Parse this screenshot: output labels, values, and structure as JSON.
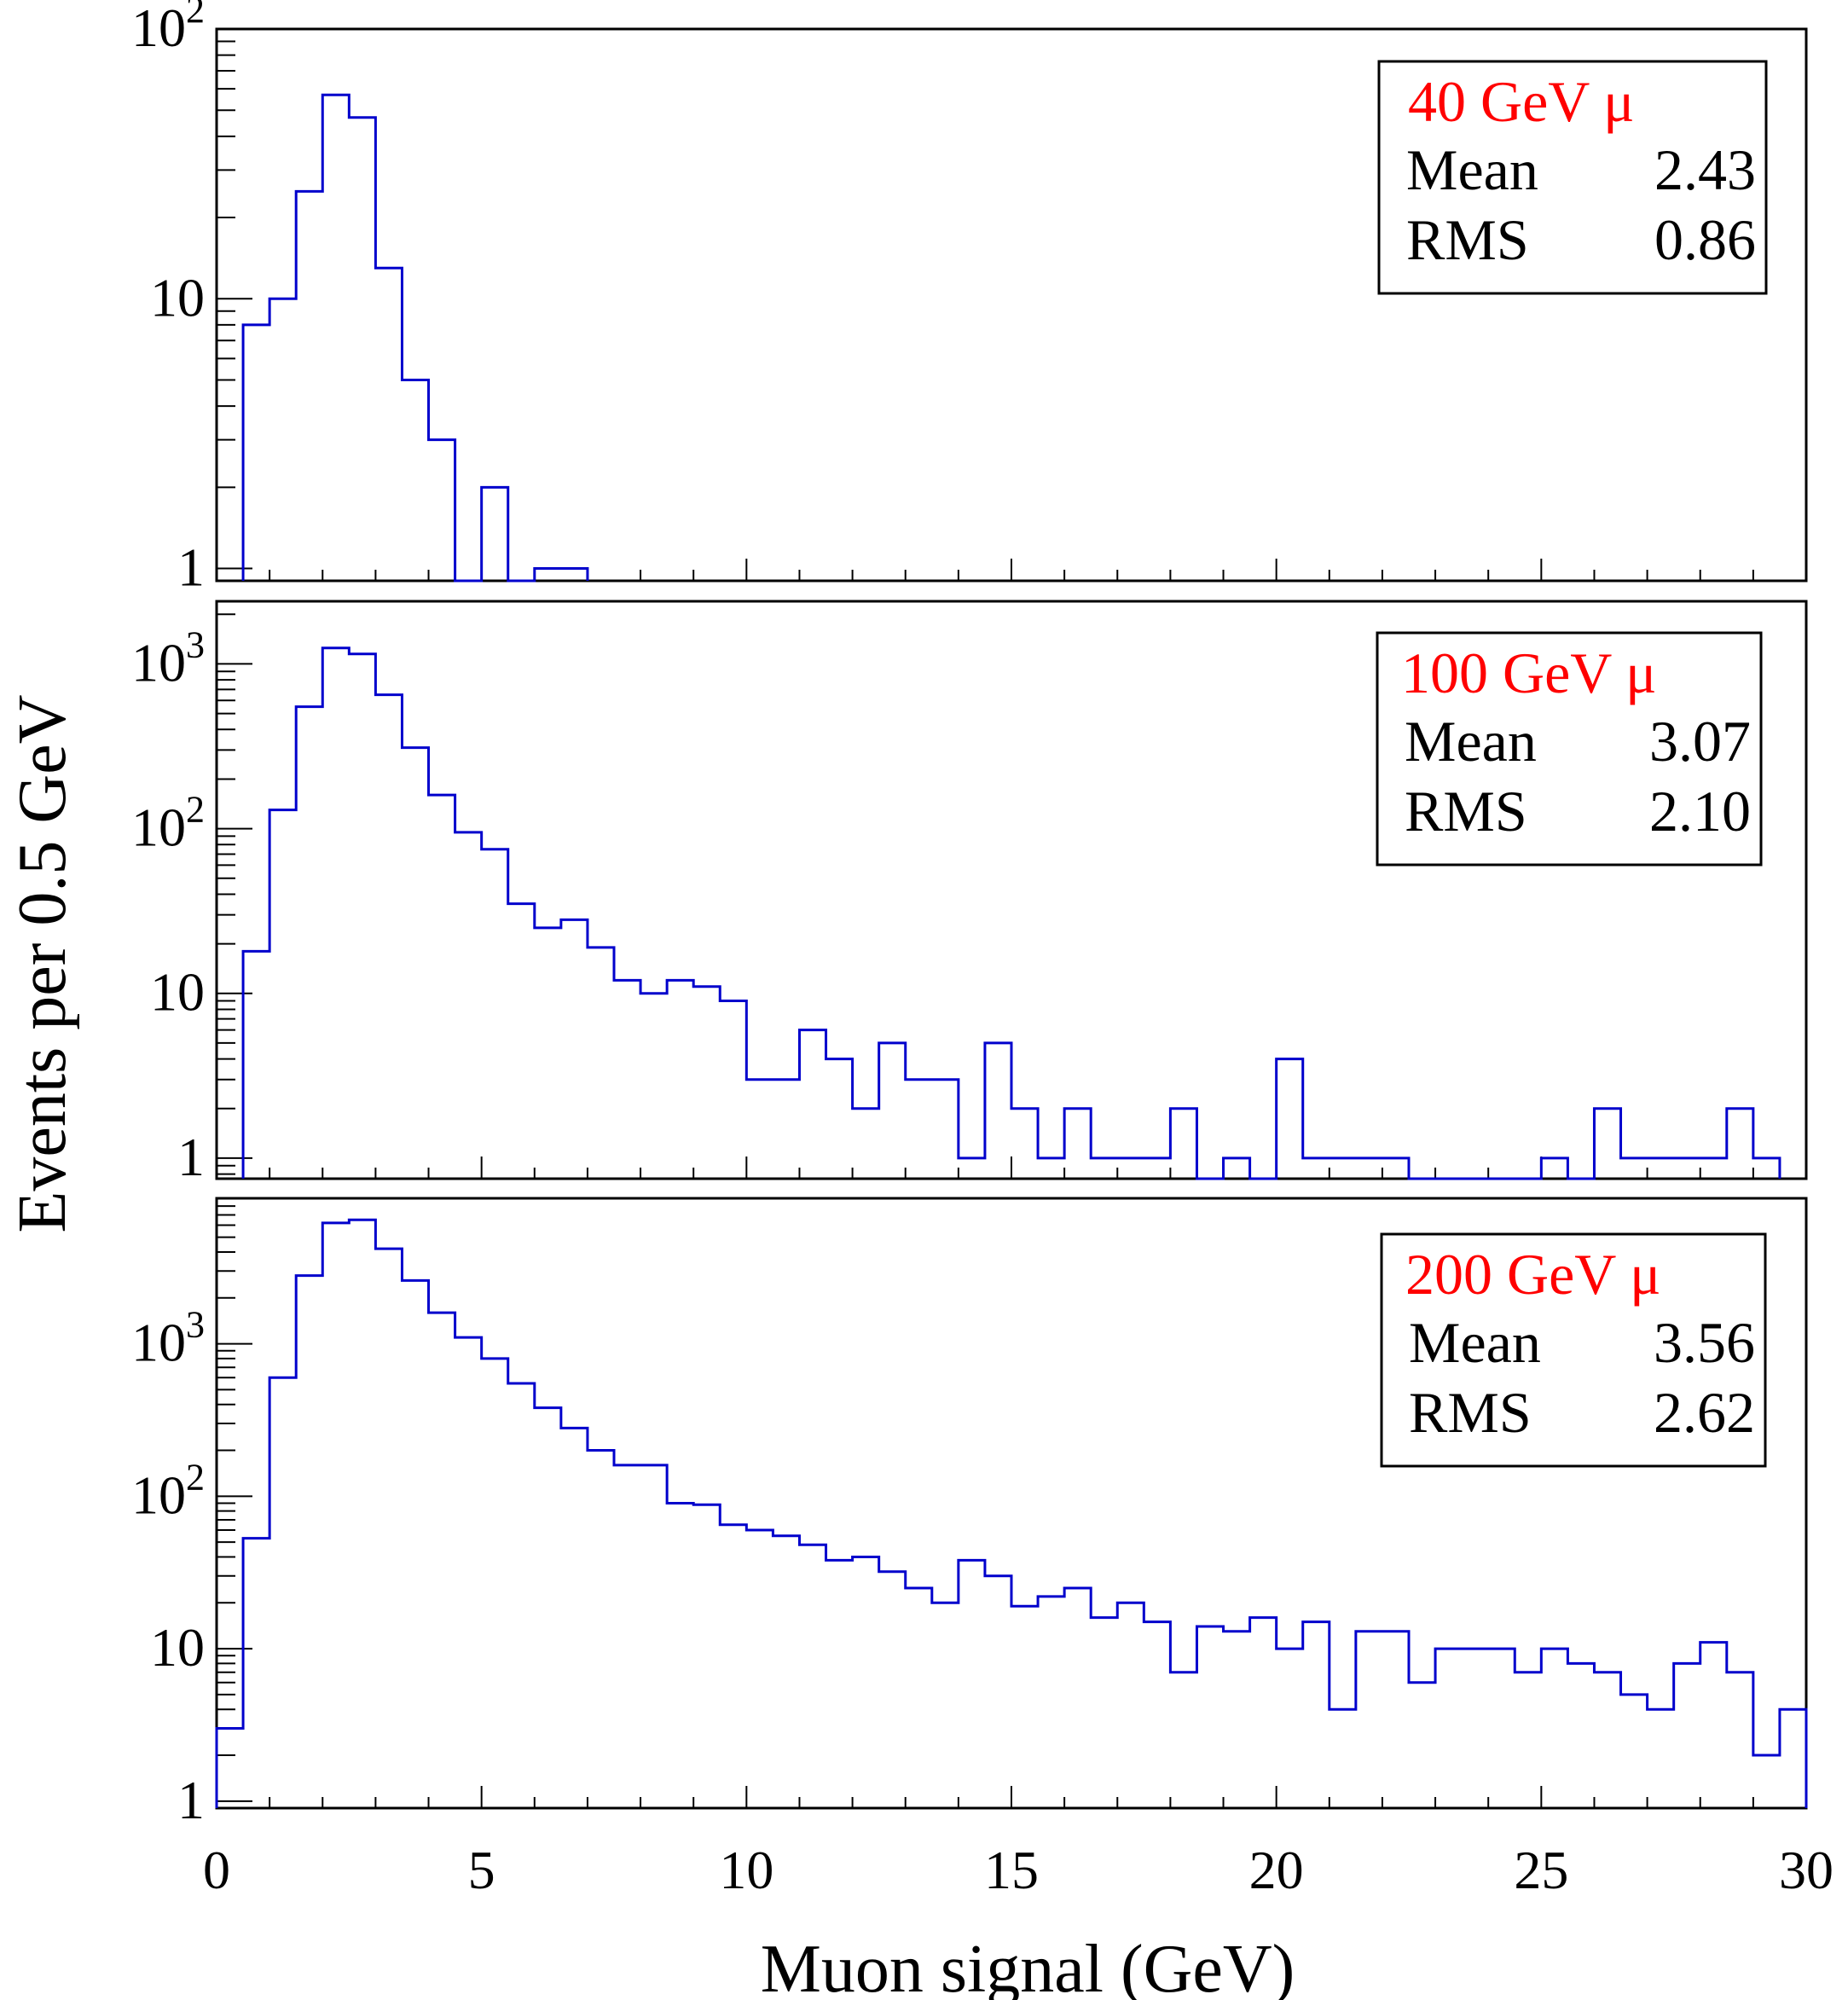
{
  "figure": {
    "ylabel": "Events per 0.5 GeV",
    "xlabel": "Muon signal (GeV)",
    "x_ticks": [
      "0",
      "5",
      "10",
      "15",
      "20",
      "25",
      "30"
    ]
  },
  "colors": {
    "histogram_line": "#0000cc",
    "beam_label": "#ff0000",
    "axis": "#000000"
  },
  "chart_data": [
    {
      "type": "histogram",
      "beam": "40 GeV μ",
      "stats": [
        {
          "label": "Mean",
          "value": "2.43"
        },
        {
          "label": "RMS",
          "value": "0.86"
        }
      ],
      "x_range": [
        0,
        30
      ],
      "bin_width": 0.5,
      "y_scale": "log",
      "y_range": [
        0.9,
        100
      ],
      "y_tick_labels": [
        {
          "value": 1,
          "text": "1"
        },
        {
          "value": 10,
          "text": "10"
        },
        {
          "value": 100,
          "base": "10",
          "exp": "2"
        }
      ],
      "bin_start": 0.5,
      "values": [
        8,
        10,
        25,
        57,
        47,
        13,
        5,
        3,
        0,
        2,
        0,
        1,
        1
      ]
    },
    {
      "type": "histogram",
      "beam": "100 GeV μ",
      "stats": [
        {
          "label": "Mean",
          "value": "3.07"
        },
        {
          "label": "RMS",
          "value": "2.10"
        }
      ],
      "x_range": [
        0,
        30
      ],
      "bin_width": 0.5,
      "y_scale": "log",
      "y_range": [
        0.75,
        2400
      ],
      "y_tick_labels": [
        {
          "value": 1,
          "text": "1"
        },
        {
          "value": 10,
          "text": "10"
        },
        {
          "value": 100,
          "base": "10",
          "exp": "2"
        },
        {
          "value": 1000,
          "base": "10",
          "exp": "3"
        }
      ],
      "bin_start": 0.5,
      "values": [
        18,
        130,
        550,
        1250,
        1150,
        650,
        310,
        160,
        95,
        75,
        35,
        25,
        28,
        19,
        12,
        10,
        12,
        11,
        9,
        3,
        3,
        6,
        4,
        2,
        5,
        3,
        3,
        1,
        5,
        2,
        1,
        2,
        1,
        1,
        1,
        2,
        0,
        1,
        0,
        4,
        1,
        1,
        1,
        1,
        0,
        0,
        0,
        0,
        0,
        1,
        0,
        2,
        1,
        1,
        1,
        1,
        2,
        1
      ]
    },
    {
      "type": "histogram",
      "beam": "200 GeV μ",
      "stats": [
        {
          "label": "Mean",
          "value": "3.56"
        },
        {
          "label": "RMS",
          "value": "2.62"
        }
      ],
      "x_range": [
        0,
        30
      ],
      "bin_width": 0.5,
      "y_scale": "log",
      "y_range": [
        0.9,
        9000
      ],
      "y_tick_labels": [
        {
          "value": 1,
          "text": "1"
        },
        {
          "value": 10,
          "text": "10"
        },
        {
          "value": 100,
          "base": "10",
          "exp": "2"
        },
        {
          "value": 1000,
          "base": "10",
          "exp": "3"
        }
      ],
      "bin_start": 0,
      "values": [
        3,
        53,
        600,
        2800,
        6200,
        6500,
        4200,
        2600,
        1600,
        1100,
        800,
        550,
        380,
        280,
        200,
        160,
        160,
        90,
        88,
        65,
        60,
        55,
        48,
        38,
        40,
        32,
        25,
        20,
        38,
        30,
        19,
        22,
        25,
        16,
        20,
        15,
        7,
        14,
        13,
        16,
        10,
        15,
        4,
        13,
        13,
        6,
        10,
        10,
        10,
        7,
        10,
        8,
        7,
        5,
        4,
        8,
        11,
        7,
        2,
        4
      ]
    }
  ]
}
